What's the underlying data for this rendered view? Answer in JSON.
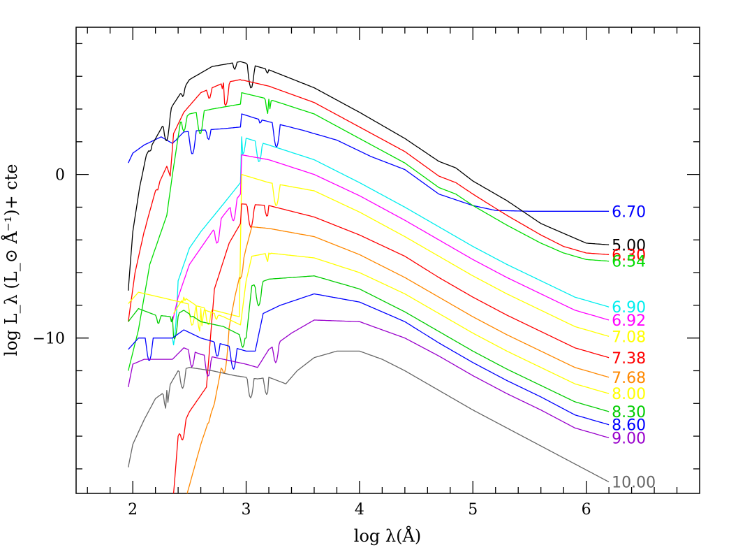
{
  "chart_data": {
    "type": "line",
    "title": "",
    "xlabel": "log λ(Å)",
    "ylabel": "log L_λ (L_⊙ Å⁻¹)+ cte",
    "xlim": [
      1.5,
      7.0
    ],
    "ylim": [
      -19.5,
      9.0
    ],
    "x_ticks": [
      2,
      3,
      4,
      5,
      6
    ],
    "y_ticks": [
      0,
      -10
    ],
    "y_tick_labels": [
      "0",
      "−10"
    ],
    "grid": false,
    "legend": "inline labels at right end of each curve",
    "series": [
      {
        "name": "6.70",
        "color": "#0000ff",
        "points": [
          [
            1.96,
            0.7
          ],
          [
            2.0,
            1.3
          ],
          [
            2.1,
            1.8
          ],
          [
            2.25,
            2.3
          ],
          [
            2.35,
            1.9
          ],
          [
            2.45,
            2.6
          ],
          [
            2.6,
            2.7
          ],
          [
            2.8,
            2.8
          ],
          [
            2.95,
            2.9
          ],
          [
            2.96,
            3.7
          ],
          [
            3.1,
            3.4
          ],
          [
            3.5,
            2.7
          ],
          [
            3.8,
            2.1
          ],
          [
            4.1,
            1.1
          ],
          [
            4.4,
            0.3
          ],
          [
            4.7,
            -1.2
          ],
          [
            5.0,
            -1.9
          ],
          [
            5.2,
            -2.2
          ],
          [
            5.5,
            -2.25
          ],
          [
            6.2,
            -2.25
          ]
        ]
      },
      {
        "name": "5.00",
        "color": "#000000",
        "points": [
          [
            1.96,
            -7.1
          ],
          [
            2.0,
            -3.5
          ],
          [
            2.06,
            -0.8
          ],
          [
            2.12,
            1.2
          ],
          [
            2.25,
            2.8
          ],
          [
            2.35,
            4.2
          ],
          [
            2.5,
            5.8
          ],
          [
            2.7,
            6.6
          ],
          [
            2.95,
            6.9
          ],
          [
            3.2,
            6.4
          ],
          [
            3.6,
            5.3
          ],
          [
            4.0,
            3.8
          ],
          [
            4.4,
            2.2
          ],
          [
            4.7,
            0.8
          ],
          [
            4.85,
            0.4
          ],
          [
            5.0,
            -0.4
          ],
          [
            5.3,
            -1.6
          ],
          [
            5.6,
            -3.0
          ],
          [
            5.8,
            -3.6
          ],
          [
            6.0,
            -4.2
          ],
          [
            6.2,
            -4.3
          ]
        ]
      },
      {
        "name": "6.30",
        "color": "#ff0000",
        "points": [
          [
            1.96,
            -9.0
          ],
          [
            2.02,
            -6.0
          ],
          [
            2.1,
            -3.5
          ],
          [
            2.2,
            -1.0
          ],
          [
            2.3,
            0.5
          ],
          [
            2.33,
            -0.1
          ],
          [
            2.36,
            2.5
          ],
          [
            2.45,
            3.8
          ],
          [
            2.6,
            5.0
          ],
          [
            2.8,
            5.6
          ],
          [
            2.95,
            5.8
          ],
          [
            3.2,
            5.4
          ],
          [
            3.6,
            4.4
          ],
          [
            4.0,
            2.9
          ],
          [
            4.4,
            1.4
          ],
          [
            4.7,
            -0.1
          ],
          [
            4.85,
            -0.5
          ],
          [
            5.0,
            -1.2
          ],
          [
            5.3,
            -2.5
          ],
          [
            5.6,
            -3.7
          ],
          [
            5.8,
            -4.4
          ],
          [
            6.0,
            -4.8
          ],
          [
            6.2,
            -4.9
          ]
        ]
      },
      {
        "name": "6.54",
        "color": "#00dd00",
        "points": [
          [
            1.96,
            -12.0
          ],
          [
            2.05,
            -9.5
          ],
          [
            2.15,
            -5.5
          ],
          [
            2.25,
            -3.5
          ],
          [
            2.3,
            -2.5
          ],
          [
            2.35,
            0.0
          ],
          [
            2.42,
            3.2
          ],
          [
            2.5,
            3.7
          ],
          [
            2.7,
            4.0
          ],
          [
            2.95,
            4.3
          ],
          [
            2.96,
            5.0
          ],
          [
            3.2,
            4.6
          ],
          [
            3.6,
            3.7
          ],
          [
            4.0,
            2.2
          ],
          [
            4.4,
            0.7
          ],
          [
            4.7,
            -0.8
          ],
          [
            4.85,
            -1.2
          ],
          [
            5.0,
            -1.9
          ],
          [
            5.3,
            -3.1
          ],
          [
            5.6,
            -4.2
          ],
          [
            5.8,
            -4.8
          ],
          [
            6.0,
            -5.2
          ],
          [
            6.2,
            -5.3
          ]
        ]
      },
      {
        "name": "6.90",
        "color": "#00eeee",
        "points": [
          [
            2.35,
            -10.0
          ],
          [
            2.4,
            -6.5
          ],
          [
            2.5,
            -4.5
          ],
          [
            2.6,
            -3.5
          ],
          [
            2.8,
            -1.8
          ],
          [
            2.95,
            -0.5
          ],
          [
            2.96,
            2.3
          ],
          [
            3.2,
            1.8
          ],
          [
            3.6,
            0.9
          ],
          [
            4.0,
            -0.5
          ],
          [
            4.4,
            -2.0
          ],
          [
            4.7,
            -3.2
          ],
          [
            5.0,
            -4.4
          ],
          [
            5.3,
            -5.5
          ],
          [
            5.6,
            -6.5
          ],
          [
            5.9,
            -7.5
          ],
          [
            6.2,
            -8.1
          ]
        ]
      },
      {
        "name": "6.92",
        "color": "#ff00ff",
        "points": [
          [
            2.35,
            -9.0
          ],
          [
            2.4,
            -7.5
          ],
          [
            2.5,
            -5.5
          ],
          [
            2.6,
            -4.5
          ],
          [
            2.8,
            -2.5
          ],
          [
            2.95,
            -1.2
          ],
          [
            2.96,
            1.2
          ],
          [
            3.2,
            0.9
          ],
          [
            3.6,
            0.0
          ],
          [
            4.0,
            -1.3
          ],
          [
            4.4,
            -2.8
          ],
          [
            4.7,
            -4.0
          ],
          [
            5.0,
            -5.2
          ],
          [
            5.3,
            -6.3
          ],
          [
            5.6,
            -7.3
          ],
          [
            5.9,
            -8.3
          ],
          [
            6.2,
            -8.9
          ]
        ]
      },
      {
        "name": "7.08",
        "color": "#ffff00",
        "points": [
          [
            1.96,
            -7.9
          ],
          [
            2.05,
            -7.2
          ],
          [
            2.3,
            -7.6
          ],
          [
            2.6,
            -8.1
          ],
          [
            2.94,
            -8.7
          ],
          [
            2.96,
            0.0
          ],
          [
            3.2,
            -0.5
          ],
          [
            3.6,
            -1.0
          ],
          [
            4.0,
            -2.3
          ],
          [
            4.4,
            -3.8
          ],
          [
            4.7,
            -5.0
          ],
          [
            5.0,
            -6.2
          ],
          [
            5.3,
            -7.3
          ],
          [
            5.6,
            -8.3
          ],
          [
            5.9,
            -9.3
          ],
          [
            6.2,
            -9.9
          ]
        ]
      },
      {
        "name": "7.38",
        "color": "#ff0000",
        "points": [
          [
            2.36,
            -19.5
          ],
          [
            2.4,
            -16.0
          ],
          [
            2.5,
            -14.5
          ],
          [
            2.65,
            -13.0
          ],
          [
            2.72,
            -7.0
          ],
          [
            2.85,
            -4.2
          ],
          [
            2.95,
            -3.0
          ],
          [
            2.96,
            -1.8
          ],
          [
            3.2,
            -1.9
          ],
          [
            3.6,
            -2.6
          ],
          [
            4.0,
            -3.7
          ],
          [
            4.4,
            -5.0
          ],
          [
            4.7,
            -6.3
          ],
          [
            5.0,
            -7.5
          ],
          [
            5.3,
            -8.6
          ],
          [
            5.6,
            -9.6
          ],
          [
            5.9,
            -10.6
          ],
          [
            6.2,
            -11.2
          ]
        ]
      },
      {
        "name": "7.68",
        "color": "#ff8800",
        "points": [
          [
            2.48,
            -19.5
          ],
          [
            2.6,
            -16.5
          ],
          [
            2.72,
            -14.0
          ],
          [
            2.9,
            -7.5
          ],
          [
            3.0,
            -4.5
          ],
          [
            3.05,
            -3.2
          ],
          [
            3.2,
            -3.3
          ],
          [
            3.6,
            -3.8
          ],
          [
            4.0,
            -4.9
          ],
          [
            4.4,
            -6.3
          ],
          [
            4.7,
            -7.5
          ],
          [
            5.0,
            -8.7
          ],
          [
            5.3,
            -9.8
          ],
          [
            5.6,
            -10.8
          ],
          [
            5.9,
            -11.8
          ],
          [
            6.2,
            -12.4
          ]
        ]
      },
      {
        "name": "8.00",
        "color": "#ffff00",
        "points": [
          [
            2.36,
            -8.5
          ],
          [
            2.45,
            -7.5
          ],
          [
            2.6,
            -8.2
          ],
          [
            2.8,
            -8.7
          ],
          [
            2.95,
            -9.2
          ],
          [
            3.0,
            -6.5
          ],
          [
            3.05,
            -5.0
          ],
          [
            3.2,
            -4.8
          ],
          [
            3.6,
            -5.1
          ],
          [
            4.0,
            -6.0
          ],
          [
            4.4,
            -7.3
          ],
          [
            4.7,
            -8.5
          ],
          [
            5.0,
            -9.7
          ],
          [
            5.3,
            -10.8
          ],
          [
            5.6,
            -11.8
          ],
          [
            5.9,
            -12.8
          ],
          [
            6.2,
            -13.4
          ]
        ]
      },
      {
        "name": "8.30",
        "color": "#00cc00",
        "points": [
          [
            1.96,
            -9.0
          ],
          [
            2.05,
            -8.2
          ],
          [
            2.2,
            -8.6
          ],
          [
            2.35,
            -8.7
          ],
          [
            2.45,
            -8.3
          ],
          [
            2.6,
            -9.0
          ],
          [
            2.8,
            -9.3
          ],
          [
            3.0,
            -10.0
          ],
          [
            3.05,
            -6.8
          ],
          [
            3.2,
            -6.4
          ],
          [
            3.6,
            -6.2
          ],
          [
            4.0,
            -7.0
          ],
          [
            4.4,
            -8.4
          ],
          [
            4.7,
            -9.6
          ],
          [
            5.0,
            -10.8
          ],
          [
            5.3,
            -11.9
          ],
          [
            5.6,
            -12.9
          ],
          [
            5.9,
            -13.9
          ],
          [
            6.2,
            -14.5
          ]
        ]
      },
      {
        "name": "8.60",
        "color": "#0000ff",
        "points": [
          [
            1.96,
            -10.7
          ],
          [
            2.05,
            -10.0
          ],
          [
            2.2,
            -10.0
          ],
          [
            2.35,
            -10.0
          ],
          [
            2.45,
            -9.5
          ],
          [
            2.6,
            -10.0
          ],
          [
            2.8,
            -10.4
          ],
          [
            3.0,
            -10.8
          ],
          [
            3.08,
            -10.8
          ],
          [
            3.15,
            -8.5
          ],
          [
            3.3,
            -8.0
          ],
          [
            3.6,
            -7.3
          ],
          [
            4.0,
            -7.8
          ],
          [
            4.4,
            -9.0
          ],
          [
            4.7,
            -10.3
          ],
          [
            5.0,
            -11.5
          ],
          [
            5.3,
            -12.6
          ],
          [
            5.6,
            -13.6
          ],
          [
            5.9,
            -14.7
          ],
          [
            6.2,
            -15.3
          ]
        ]
      },
      {
        "name": "9.00",
        "color": "#9900cc",
        "points": [
          [
            1.96,
            -13.0
          ],
          [
            2.0,
            -11.6
          ],
          [
            2.1,
            -11.3
          ],
          [
            2.35,
            -11.3
          ],
          [
            2.45,
            -10.6
          ],
          [
            2.6,
            -11.0
          ],
          [
            2.8,
            -11.3
          ],
          [
            3.0,
            -11.6
          ],
          [
            3.1,
            -11.8
          ],
          [
            3.2,
            -10.7
          ],
          [
            3.4,
            -9.7
          ],
          [
            3.6,
            -8.9
          ],
          [
            4.0,
            -9.0
          ],
          [
            4.4,
            -10.0
          ],
          [
            4.7,
            -11.1
          ],
          [
            5.0,
            -12.3
          ],
          [
            5.3,
            -13.4
          ],
          [
            5.6,
            -14.4
          ],
          [
            5.9,
            -15.5
          ],
          [
            6.2,
            -16.1
          ]
        ]
      },
      {
        "name": "10.00",
        "color": "#666666",
        "points": [
          [
            1.96,
            -17.9
          ],
          [
            2.0,
            -16.5
          ],
          [
            2.1,
            -15.0
          ],
          [
            2.2,
            -13.7
          ],
          [
            2.3,
            -13.2
          ],
          [
            2.4,
            -12.0
          ],
          [
            2.5,
            -11.8
          ],
          [
            2.7,
            -12.0
          ],
          [
            2.9,
            -12.3
          ],
          [
            3.1,
            -12.5
          ],
          [
            3.2,
            -12.4
          ],
          [
            3.35,
            -12.8
          ],
          [
            3.45,
            -12.0
          ],
          [
            3.6,
            -11.2
          ],
          [
            3.8,
            -10.8
          ],
          [
            4.0,
            -10.8
          ],
          [
            4.2,
            -11.3
          ],
          [
            4.4,
            -12.0
          ],
          [
            4.7,
            -13.2
          ],
          [
            5.0,
            -14.4
          ],
          [
            5.3,
            -15.5
          ],
          [
            5.6,
            -16.6
          ],
          [
            5.9,
            -17.7
          ],
          [
            6.2,
            -18.8
          ]
        ]
      }
    ]
  }
}
